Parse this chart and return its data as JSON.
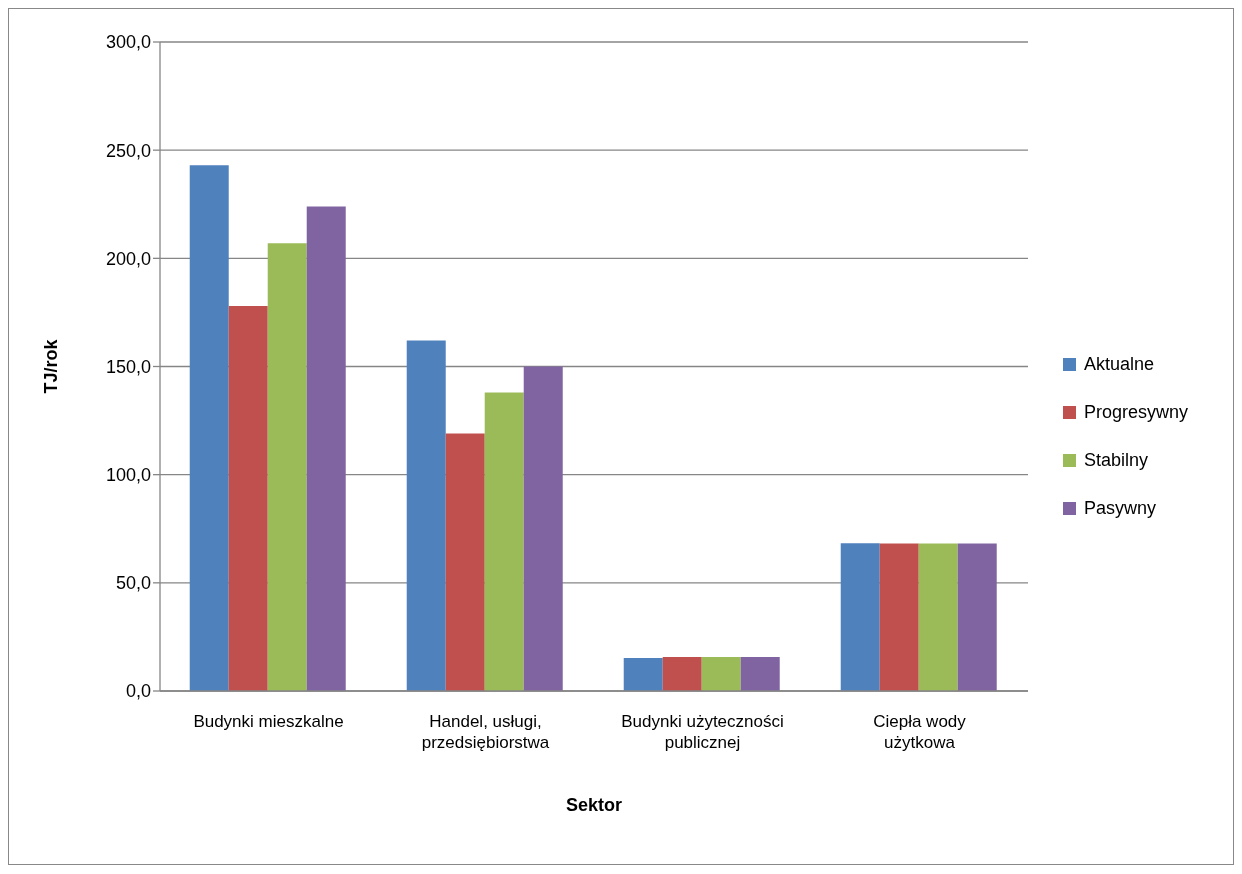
{
  "chart_data": {
    "type": "bar",
    "xlabel": "Sektor",
    "ylabel": "TJ/rok",
    "categories": [
      "Budynki mieszkalne",
      "Handel, usługi, przedsiębiorstwa",
      "Budynki użyteczności publicznej",
      "Ciepła wody użytkowa"
    ],
    "series": [
      {
        "name": "Aktualne",
        "color": "#4f81bd",
        "values": [
          243,
          162,
          15.2,
          68.3
        ]
      },
      {
        "name": "Progresywny",
        "color": "#c0504d",
        "values": [
          178,
          119,
          15.7,
          68.2
        ]
      },
      {
        "name": "Stabilny",
        "color": "#9bbb59",
        "values": [
          207,
          138,
          15.7,
          68.2
        ]
      },
      {
        "name": "Pasywny",
        "color": "#8064a2",
        "values": [
          224,
          150,
          15.7,
          68.2
        ]
      }
    ],
    "ylim": [
      0,
      300
    ],
    "yticks": [
      {
        "value": 0,
        "label": "0,0"
      },
      {
        "value": 50,
        "label": "50,0"
      },
      {
        "value": 100,
        "label": "100,0"
      },
      {
        "value": 150,
        "label": "150,0"
      },
      {
        "value": 200,
        "label": "200,0"
      },
      {
        "value": 250,
        "label": "250,0"
      },
      {
        "value": 300,
        "label": "300,0"
      }
    ],
    "grid": "y",
    "legend": "right"
  }
}
